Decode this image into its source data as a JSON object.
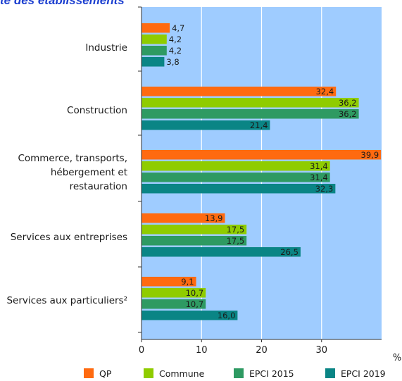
{
  "header": {
    "title": "te des établissements"
  },
  "colors": {
    "plot_bg": "#9fccff",
    "grid": "#ffffff",
    "axis": "#333333"
  },
  "chart_data": {
    "type": "bar",
    "orientation": "horizontal",
    "title": "te des établissements",
    "categories": [
      [
        "Industrie"
      ],
      [
        "Construction"
      ],
      [
        "Commerce, transports,",
        "hébergement et",
        "restauration"
      ],
      [
        "Services aux entreprises"
      ],
      [
        "Services aux particuliers²"
      ]
    ],
    "series": [
      {
        "name": "QP",
        "color": "#ff6a10",
        "values": [
          4.7,
          32.4,
          39.9,
          13.9,
          9.1
        ],
        "labels": [
          "4,7",
          "32,4",
          "39,9",
          "13,9",
          "9,1"
        ]
      },
      {
        "name": "Commune",
        "color": "#8fcc00",
        "values": [
          4.2,
          36.2,
          31.4,
          17.5,
          10.7
        ],
        "labels": [
          "4,2",
          "36,2",
          "31,4",
          "17,5",
          "10,7"
        ]
      },
      {
        "name": "EPCI 2015",
        "color": "#2e9a62",
        "values": [
          4.2,
          36.2,
          31.4,
          17.5,
          10.7
        ],
        "labels": [
          "4,2",
          "36,2",
          "31,4",
          "17,5",
          "10,7"
        ]
      },
      {
        "name": "EPCI 2019",
        "color": "#0a8585",
        "values": [
          3.8,
          21.4,
          32.3,
          26.5,
          16.0
        ],
        "labels": [
          "3,8",
          "21,4",
          "32,3",
          "26,5",
          "16,0"
        ]
      }
    ],
    "xlim": [
      0,
      40
    ],
    "xticks": [
      0,
      10,
      20,
      30
    ],
    "xtick_labels": [
      "0",
      "10",
      "20",
      "30"
    ],
    "xunit": "%",
    "grid": true,
    "legend": "bottom"
  }
}
